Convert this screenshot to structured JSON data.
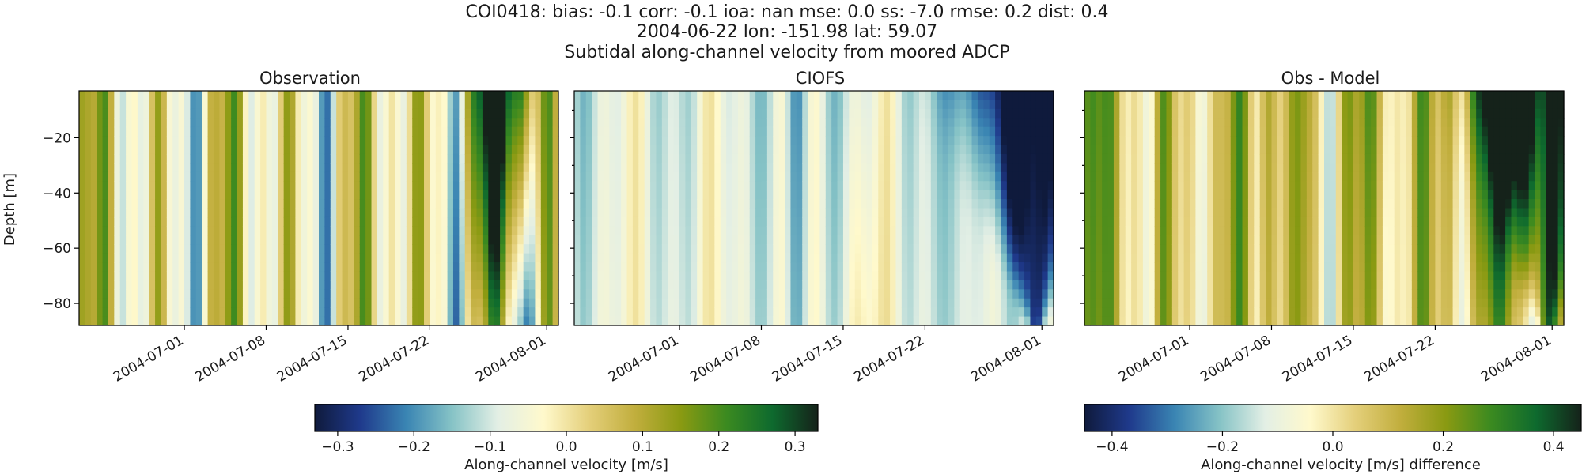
{
  "header": {
    "line1": "COI0418: bias: -0.1  corr: -0.1  ioa: nan  mse: 0.0  ss: -7.0  rmse: 0.2  dist: 0.4",
    "line2": "2004-06-22 lon: -151.98 lat: 59.07",
    "line3": "Subtidal along-channel velocity from moored ADCP"
  },
  "colormap": [
    "#0f1a3c",
    "#1f3a8c",
    "#3a85b3",
    "#86c3c6",
    "#e3efe5",
    "#fff9cc",
    "#e4cf7a",
    "#c1ae3d",
    "#8a9a12",
    "#3b8a20",
    "#0e6a2e",
    "#15221a"
  ],
  "chart_data": [
    {
      "type": "heatmap",
      "title": "Observation",
      "ylabel": "Depth [m]",
      "xlabel": "",
      "ylim": [
        -88,
        -3
      ],
      "y_ticks": [
        -20,
        -40,
        -60,
        -80
      ],
      "x_ticks": [
        "2004-07-01",
        "2004-07-08",
        "2004-07-15",
        "2004-07-22",
        "2004-08-01"
      ],
      "x_range": [
        "2004-06-22",
        "2004-08-02"
      ],
      "clim": [
        -0.33,
        0.33
      ],
      "pattern": "mixed positive and negative bands, strongest positive 2004-07-24 to 2004-07-29 near surface",
      "values_m_s_surface": [
        {
          "date": "2004-06-23",
          "v": 0.1
        },
        {
          "date": "2004-06-28",
          "v": 0.12
        },
        {
          "date": "2004-07-04",
          "v": -0.08
        },
        {
          "date": "2004-07-10",
          "v": 0.1
        },
        {
          "date": "2004-07-16",
          "v": -0.05
        },
        {
          "date": "2004-07-22",
          "v": 0.05
        },
        {
          "date": "2004-07-26",
          "v": 0.3
        },
        {
          "date": "2004-07-30",
          "v": 0.18
        },
        {
          "date": "2004-08-01",
          "v": 0.05
        }
      ]
    },
    {
      "type": "heatmap",
      "title": "CIOFS",
      "ylim": [
        -88,
        -3
      ],
      "y_ticks": [
        -20,
        -40,
        -60,
        -80
      ],
      "x_ticks": [
        "2004-07-01",
        "2004-07-08",
        "2004-07-15",
        "2004-07-22",
        "2004-08-01"
      ],
      "x_range": [
        "2004-06-22",
        "2004-08-02"
      ],
      "clim": [
        -0.33,
        0.33
      ],
      "pattern": "mostly negative; strongest negative ~2004-07-27 to 2004-08-01 near surface",
      "values_m_s_surface": [
        {
          "date": "2004-06-23",
          "v": -0.05
        },
        {
          "date": "2004-07-01",
          "v": -0.12
        },
        {
          "date": "2004-07-10",
          "v": -0.22
        },
        {
          "date": "2004-07-17",
          "v": -0.1
        },
        {
          "date": "2004-07-24",
          "v": -0.2
        },
        {
          "date": "2004-07-29",
          "v": -0.33
        },
        {
          "date": "2004-08-01",
          "v": -0.25
        }
      ]
    },
    {
      "type": "heatmap",
      "title": "Obs - Model",
      "ylim": [
        -88,
        -3
      ],
      "y_ticks": [
        -20,
        -40,
        -60,
        -80
      ],
      "x_ticks": [
        "2004-07-01",
        "2004-07-08",
        "2004-07-15",
        "2004-07-22",
        "2004-08-01"
      ],
      "x_range": [
        "2004-06-22",
        "2004-08-02"
      ],
      "clim": [
        -0.45,
        0.45
      ],
      "pattern": "mostly positive difference; strongest ~2004-07-27 to 2004-07-30",
      "values_m_s_surface": [
        {
          "date": "2004-06-23",
          "v": 0.12
        },
        {
          "date": "2004-07-01",
          "v": 0.15
        },
        {
          "date": "2004-07-10",
          "v": 0.28
        },
        {
          "date": "2004-07-17",
          "v": 0.15
        },
        {
          "date": "2004-07-24",
          "v": 0.3
        },
        {
          "date": "2004-07-28",
          "v": 0.45
        },
        {
          "date": "2004-08-01",
          "v": 0.25
        }
      ]
    }
  ],
  "colorbars": [
    {
      "label": "Along-channel velocity [m/s]",
      "range": [
        -0.33,
        0.33
      ],
      "ticks": [
        "−0.3",
        "−0.2",
        "−0.1",
        "0.0",
        "0.1",
        "0.2",
        "0.3"
      ],
      "tick_values": [
        -0.3,
        -0.2,
        -0.1,
        0.0,
        0.1,
        0.2,
        0.3
      ]
    },
    {
      "label": "Along-channel velocity [m/s] difference",
      "range": [
        -0.45,
        0.45
      ],
      "ticks": [
        "−0.4",
        "−0.2",
        "0.0",
        "0.2",
        "0.4"
      ],
      "tick_values": [
        -0.4,
        -0.2,
        0.0,
        0.2,
        0.4
      ]
    }
  ],
  "y_tick_labels": [
    "−20",
    "−40",
    "−60",
    "−80"
  ]
}
